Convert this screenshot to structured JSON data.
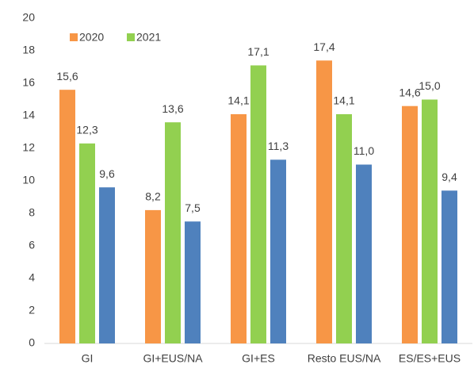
{
  "chart_data": {
    "type": "bar",
    "categories": [
      "GI",
      "GI+EUS/NA",
      "GI+ES",
      "Resto EUS/NA",
      "ES/ES+EUS"
    ],
    "series": [
      {
        "name": "2020",
        "color": "#f79646",
        "values": [
          15.6,
          8.2,
          14.1,
          17.4,
          14.6
        ],
        "value_labels": [
          "15,6",
          "8,2",
          "14,1",
          "17,4",
          "14,6"
        ]
      },
      {
        "name": "2021",
        "color": "#92d050",
        "values": [
          12.3,
          13.6,
          17.1,
          14.1,
          15.0
        ],
        "value_labels": [
          "12,3",
          "13,6",
          "17,1",
          "14,1",
          "15,0"
        ]
      },
      {
        "color": "#4f81bd",
        "values": [
          9.6,
          7.5,
          11.3,
          11.0,
          9.4
        ],
        "value_labels": [
          "9,6",
          "7,5",
          "11,3",
          "11,0",
          "9,4"
        ]
      }
    ],
    "ylim": [
      0,
      20
    ],
    "yticks": [
      0,
      2,
      4,
      6,
      8,
      10,
      12,
      14,
      16,
      18,
      20
    ],
    "grid": false,
    "legend": "top-left"
  }
}
